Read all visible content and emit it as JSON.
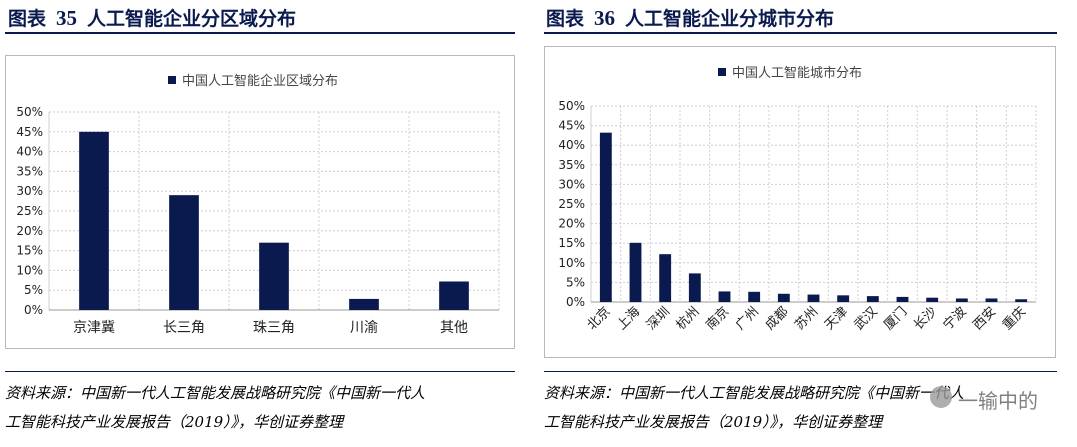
{
  "left": {
    "title_prefix": "图表",
    "title_num": "35",
    "title_text": "人工智能企业分区域分布",
    "source_line1": "资料来源：中国新一代人工智能发展战略研究院《中国新一代人",
    "source_line2": "工智能科技产业发展报告（2019）》，华创证券整理",
    "chart_data": {
      "type": "bar",
      "legend": "中国人工智能企业区域分布",
      "categories": [
        "京津冀",
        "长三角",
        "珠三角",
        "川渝",
        "其他"
      ],
      "values": [
        0.45,
        0.29,
        0.17,
        0.028,
        0.072
      ],
      "ylim": [
        0,
        0.5
      ],
      "yticks": [
        "0%",
        "5%",
        "10%",
        "15%",
        "20%",
        "25%",
        "30%",
        "35%",
        "40%",
        "45%",
        "50%"
      ],
      "grid": true,
      "bar_color": "#0b1a4e"
    }
  },
  "right": {
    "title_prefix": "图表",
    "title_num": "36",
    "title_text": "人工智能企业分城市分布",
    "source_line1": "资料来源：中国新一代人工智能发展战略研究院《中国新一代人",
    "source_line2": "工智能科技产业发展报告（2019）》，华创证券整理",
    "watermark": "一输中的",
    "chart_data": {
      "type": "bar",
      "legend": "中国人工智能城市分布",
      "categories": [
        "北京",
        "上海",
        "深圳",
        "杭州",
        "南京",
        "广州",
        "成都",
        "苏州",
        "天津",
        "武汉",
        "厦门",
        "长沙",
        "宁波",
        "西安",
        "重庆"
      ],
      "values": [
        0.432,
        0.151,
        0.122,
        0.073,
        0.027,
        0.026,
        0.021,
        0.019,
        0.017,
        0.015,
        0.013,
        0.011,
        0.009,
        0.009,
        0.007
      ],
      "ylim": [
        0,
        0.5
      ],
      "yticks": [
        "0%",
        "5%",
        "10%",
        "15%",
        "20%",
        "25%",
        "30%",
        "35%",
        "40%",
        "45%",
        "50%"
      ],
      "grid": true,
      "bar_color": "#0b1a4e"
    }
  }
}
